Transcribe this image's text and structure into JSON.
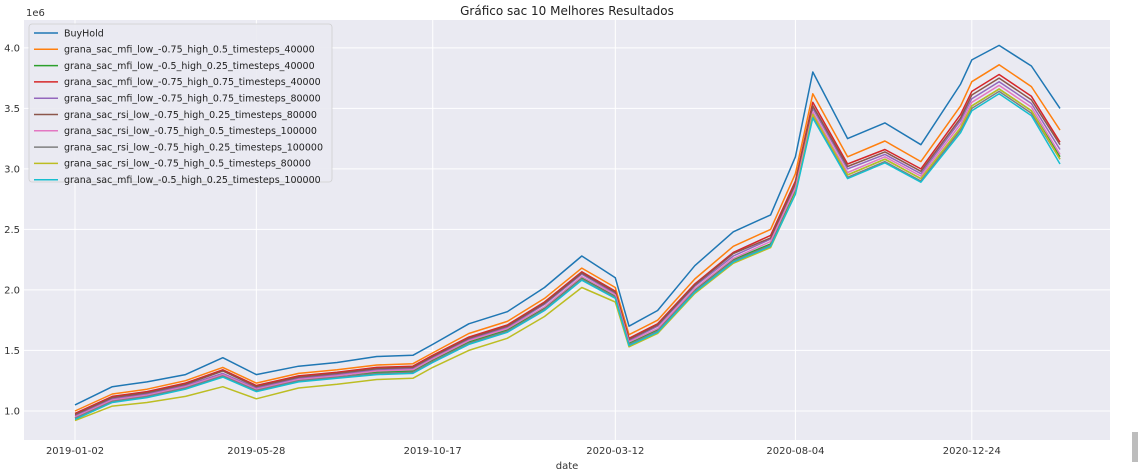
{
  "chart_data": {
    "type": "line",
    "title": "Gráfico sac 10 Melhores Resultados",
    "xlabel": "date",
    "ylabel": "",
    "y_scale_label": "1e6",
    "ylim": [
      0.76,
      4.23
    ],
    "yticks": [
      1.0,
      1.5,
      2.0,
      2.5,
      3.0,
      3.5,
      4.0
    ],
    "ytick_labels": [
      "1.0",
      "1.5",
      "2.0",
      "2.5",
      "3.0",
      "3.5",
      "4.0"
    ],
    "xticks": [
      "2019-01-02",
      "2019-05-28",
      "2019-10-17",
      "2020-03-12",
      "2020-08-04",
      "2020-12-24"
    ],
    "x": [
      "2019-01-02",
      "2019-02-01",
      "2019-03-01",
      "2019-04-01",
      "2019-05-01",
      "2019-05-28",
      "2019-07-01",
      "2019-08-01",
      "2019-09-02",
      "2019-10-01",
      "2019-10-17",
      "2019-11-15",
      "2019-12-16",
      "2020-01-15",
      "2020-02-14",
      "2020-03-12",
      "2020-03-23",
      "2020-04-15",
      "2020-05-15",
      "2020-06-15",
      "2020-07-15",
      "2020-08-04",
      "2020-08-18",
      "2020-09-15",
      "2020-10-15",
      "2020-11-13",
      "2020-12-15",
      "2020-12-24",
      "2021-01-15",
      "2021-02-10",
      "2021-03-05"
    ],
    "grid": true,
    "legend_position": "top-left",
    "series": [
      {
        "name": "BuyHold",
        "color": "#1f77b4",
        "values": [
          1.05,
          1.2,
          1.24,
          1.3,
          1.44,
          1.3,
          1.37,
          1.4,
          1.45,
          1.46,
          1.55,
          1.72,
          1.82,
          2.02,
          2.28,
          2.1,
          1.7,
          1.83,
          2.2,
          2.48,
          2.62,
          3.1,
          3.8,
          3.25,
          3.38,
          3.2,
          3.7,
          3.9,
          4.02,
          3.85,
          3.5
        ]
      },
      {
        "name": "grana_sac_mfi_low_-0.75_high_0.5_timesteps_40000",
        "color": "#ff7f0e",
        "values": [
          1.0,
          1.14,
          1.18,
          1.25,
          1.36,
          1.23,
          1.31,
          1.34,
          1.38,
          1.39,
          1.48,
          1.64,
          1.74,
          1.93,
          2.18,
          2.02,
          1.63,
          1.75,
          2.09,
          2.36,
          2.5,
          2.96,
          3.62,
          3.1,
          3.23,
          3.06,
          3.52,
          3.72,
          3.86,
          3.68,
          3.32
        ]
      },
      {
        "name": "grana_sac_mfi_low_-0.5_high_0.25_timesteps_40000",
        "color": "#2ca02c",
        "values": [
          0.94,
          1.08,
          1.12,
          1.19,
          1.29,
          1.17,
          1.25,
          1.28,
          1.32,
          1.33,
          1.42,
          1.57,
          1.67,
          1.85,
          2.1,
          1.95,
          1.56,
          1.67,
          2.0,
          2.25,
          2.38,
          2.82,
          3.45,
          2.95,
          3.08,
          2.92,
          3.34,
          3.52,
          3.66,
          3.48,
          3.1
        ]
      },
      {
        "name": "grana_sac_mfi_low_-0.75_high_0.75_timesteps_40000",
        "color": "#d62728",
        "values": [
          0.98,
          1.12,
          1.16,
          1.23,
          1.34,
          1.21,
          1.29,
          1.32,
          1.36,
          1.37,
          1.46,
          1.61,
          1.71,
          1.9,
          2.15,
          1.99,
          1.6,
          1.72,
          2.05,
          2.31,
          2.45,
          2.9,
          3.55,
          3.04,
          3.16,
          3.0,
          3.45,
          3.64,
          3.78,
          3.6,
          3.22
        ]
      },
      {
        "name": "grana_sac_mfi_low_-0.75_high_0.75_timesteps_80000",
        "color": "#9467bd",
        "values": [
          0.96,
          1.1,
          1.14,
          1.21,
          1.31,
          1.19,
          1.27,
          1.3,
          1.34,
          1.35,
          1.44,
          1.59,
          1.69,
          1.88,
          2.13,
          1.97,
          1.58,
          1.7,
          2.03,
          2.28,
          2.42,
          2.86,
          3.5,
          3.0,
          3.12,
          2.96,
          3.4,
          3.58,
          3.72,
          3.54,
          3.16
        ]
      },
      {
        "name": "grana_sac_rsi_low_-0.75_high_0.25_timesteps_80000",
        "color": "#8c564b",
        "values": [
          0.97,
          1.11,
          1.15,
          1.22,
          1.33,
          1.2,
          1.28,
          1.31,
          1.35,
          1.36,
          1.45,
          1.6,
          1.7,
          1.89,
          2.14,
          1.98,
          1.59,
          1.71,
          2.04,
          2.3,
          2.43,
          2.88,
          3.52,
          3.02,
          3.14,
          2.98,
          3.42,
          3.61,
          3.75,
          3.57,
          3.2
        ]
      },
      {
        "name": "grana_sac_rsi_low_-0.75_high_0.5_timesteps_100000",
        "color": "#e377c2",
        "values": [
          0.95,
          1.09,
          1.13,
          1.2,
          1.3,
          1.18,
          1.26,
          1.29,
          1.33,
          1.34,
          1.43,
          1.58,
          1.68,
          1.86,
          2.11,
          1.96,
          1.57,
          1.68,
          2.01,
          2.26,
          2.4,
          2.84,
          3.47,
          2.97,
          3.1,
          2.94,
          3.37,
          3.55,
          3.69,
          3.51,
          3.12
        ]
      },
      {
        "name": "grana_sac_rsi_low_-0.75_high_0.25_timesteps_100000",
        "color": "#7f7f7f",
        "values": [
          0.94,
          1.08,
          1.12,
          1.19,
          1.29,
          1.17,
          1.25,
          1.28,
          1.31,
          1.32,
          1.41,
          1.56,
          1.66,
          1.84,
          2.09,
          1.94,
          1.55,
          1.66,
          1.99,
          2.24,
          2.37,
          2.8,
          3.43,
          2.93,
          3.06,
          2.9,
          3.32,
          3.5,
          3.64,
          3.46,
          3.08
        ]
      },
      {
        "name": "grana_sac_rsi_low_-0.75_high_0.5_timesteps_80000",
        "color": "#bcbd22",
        "values": [
          0.92,
          1.04,
          1.07,
          1.12,
          1.2,
          1.1,
          1.19,
          1.22,
          1.26,
          1.27,
          1.36,
          1.5,
          1.6,
          1.78,
          2.02,
          1.9,
          1.53,
          1.64,
          1.97,
          2.22,
          2.35,
          2.8,
          3.45,
          2.95,
          3.08,
          2.92,
          3.34,
          3.52,
          3.66,
          3.48,
          3.08
        ]
      },
      {
        "name": "grana_sac_mfi_low_-0.5_high_0.25_timesteps_100000",
        "color": "#17becf",
        "values": [
          0.93,
          1.07,
          1.11,
          1.18,
          1.28,
          1.16,
          1.24,
          1.27,
          1.3,
          1.31,
          1.4,
          1.55,
          1.65,
          1.83,
          2.08,
          1.93,
          1.54,
          1.65,
          1.98,
          2.23,
          2.36,
          2.79,
          3.42,
          2.92,
          3.05,
          2.89,
          3.3,
          3.48,
          3.62,
          3.44,
          3.04
        ]
      }
    ]
  }
}
